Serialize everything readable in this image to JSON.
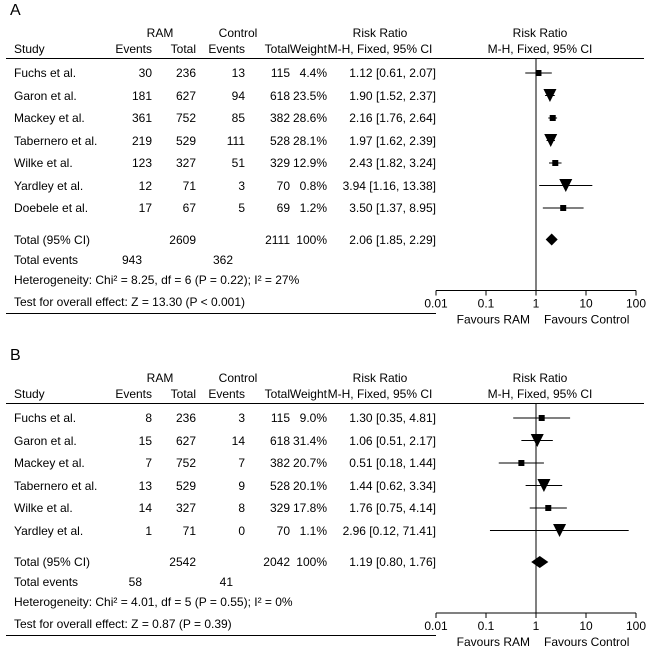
{
  "panels": [
    {
      "letter": "A",
      "headers": {
        "group1": "RAM",
        "group2": "Control",
        "study": "Study",
        "events1": "Events",
        "total1": "Total",
        "events2": "Events",
        "total2": "Total",
        "weight": "Weight",
        "rr_title": "Risk Ratio",
        "rr_method": "M-H, Fixed, 95% CI",
        "plot_title": "Risk Ratio",
        "plot_method": "M-H, Fixed, 95% CI"
      },
      "studies": [
        {
          "study": "Fuchs et al.",
          "e1": "30",
          "t1": "236",
          "e2": "13",
          "t2": "115",
          "weight": "4.4%",
          "ci": "1.12 [0.61, 2.07]"
        },
        {
          "study": "Garon et al.",
          "e1": "181",
          "t1": "627",
          "e2": "94",
          "t2": "618",
          "weight": "23.5%",
          "ci": "1.90 [1.52, 2.37]"
        },
        {
          "study": "Mackey et al.",
          "e1": "361",
          "t1": "752",
          "e2": "85",
          "t2": "382",
          "weight": "28.6%",
          "ci": "2.16 [1.76, 2.64]"
        },
        {
          "study": "Tabernero et al.",
          "e1": "219",
          "t1": "529",
          "e2": "111",
          "t2": "528",
          "weight": "28.1%",
          "ci": "1.97 [1.62, 2.39]"
        },
        {
          "study": "Wilke et al.",
          "e1": "123",
          "t1": "327",
          "e2": "51",
          "t2": "329",
          "weight": "12.9%",
          "ci": "2.43 [1.82, 3.24]"
        },
        {
          "study": "Yardley et al.",
          "e1": "12",
          "t1": "71",
          "e2": "3",
          "t2": "70",
          "weight": "0.8%",
          "ci": "3.94 [1.16, 13.38]"
        },
        {
          "study": "Doebele et al.",
          "e1": "17",
          "t1": "67",
          "e2": "5",
          "t2": "69",
          "weight": "1.2%",
          "ci": "3.50 [1.37, 8.95]"
        }
      ],
      "total": {
        "label": "Total (95% CI)",
        "t1": "2609",
        "t2": "2111",
        "weight": "100%",
        "ci": "2.06 [1.85, 2.29]"
      },
      "total_events": {
        "label": "Total events",
        "e1": "943",
        "e2": "362"
      },
      "heterogeneity": "Heterogeneity: Chi² = 8.25, df = 6 (P = 0.22); I² = 27%",
      "overall": "Test for overall effect: Z = 13.30 (P < 0.001)",
      "favours_left": "Favours RAM",
      "favours_right": "Favours Control"
    },
    {
      "letter": "B",
      "headers": {
        "group1": "RAM",
        "group2": "Control",
        "study": "Study",
        "events1": "Events",
        "total1": "Total",
        "events2": "Events",
        "total2": "Total",
        "weight": "Weight",
        "rr_title": "Risk Ratio",
        "rr_method": "M-H, Fixed, 95% CI",
        "plot_title": "Risk Ratio",
        "plot_method": "M-H, Fixed, 95% CI"
      },
      "studies": [
        {
          "study": "Fuchs et al.",
          "e1": "8",
          "t1": "236",
          "e2": "3",
          "t2": "115",
          "weight": "9.0%",
          "ci": "1.30 [0.35, 4.81]"
        },
        {
          "study": "Garon et al.",
          "e1": "15",
          "t1": "627",
          "e2": "14",
          "t2": "618",
          "weight": "31.4%",
          "ci": "1.06 [0.51, 2.17]"
        },
        {
          "study": "Mackey et al.",
          "e1": "7",
          "t1": "752",
          "e2": "7",
          "t2": "382",
          "weight": "20.7%",
          "ci": "0.51 [0.18, 1.44]"
        },
        {
          "study": "Tabernero et al.",
          "e1": "13",
          "t1": "529",
          "e2": "9",
          "t2": "528",
          "weight": "20.1%",
          "ci": "1.44 [0.62, 3.34]"
        },
        {
          "study": "Wilke et al.",
          "e1": "14",
          "t1": "327",
          "e2": "8",
          "t2": "329",
          "weight": "17.8%",
          "ci": "1.76 [0.75, 4.14]"
        },
        {
          "study": "Yardley et al.",
          "e1": "1",
          "t1": "71",
          "e2": "0",
          "t2": "70",
          "weight": "1.1%",
          "ci": "2.96 [0.12, 71.41]"
        }
      ],
      "total": {
        "label": "Total (95% CI)",
        "t1": "2542",
        "t2": "2042",
        "weight": "100%",
        "ci": "1.19 [0.80, 1.76]"
      },
      "total_events": {
        "label": "Total events",
        "e1": "58",
        "e2": "41"
      },
      "heterogeneity": "Heterogeneity: Chi² = 4.01, df = 5 (P = 0.55); I² = 0%",
      "overall": "Test for overall effect: Z = 0.87 (P = 0.39)",
      "favours_left": "Favours RAM",
      "favours_right": "Favours Control"
    }
  ],
  "chart_data": [
    {
      "type": "forest",
      "title": "A",
      "scale": "log",
      "xlim": [
        0.01,
        100
      ],
      "ticks": [
        0.01,
        0.1,
        1,
        10,
        100
      ],
      "tick_labels": [
        "0.01",
        "0.1",
        "1",
        "10",
        "100"
      ],
      "xlabel_left": "Favours RAM",
      "xlabel_right": "Favours Control",
      "studies": [
        "Fuchs et al.",
        "Garon et al.",
        "Mackey et al.",
        "Tabernero et al.",
        "Wilke et al.",
        "Yardley et al.",
        "Doebele et al."
      ],
      "rr": [
        1.12,
        1.9,
        2.16,
        1.97,
        2.43,
        3.94,
        3.5
      ],
      "lower": [
        0.61,
        1.52,
        1.76,
        1.62,
        1.82,
        1.16,
        1.37
      ],
      "upper": [
        2.07,
        2.37,
        2.64,
        2.39,
        3.24,
        13.38,
        8.95
      ],
      "marker": [
        "square",
        "triangle",
        "square",
        "triangle",
        "square",
        "triangle",
        "square"
      ],
      "weight": [
        4.4,
        23.5,
        28.6,
        28.1,
        12.9,
        0.8,
        1.2
      ],
      "pooled": {
        "rr": 2.06,
        "lower": 1.85,
        "upper": 2.29
      }
    },
    {
      "type": "forest",
      "title": "B",
      "scale": "log",
      "xlim": [
        0.01,
        100
      ],
      "ticks": [
        0.01,
        0.1,
        1,
        10,
        100
      ],
      "tick_labels": [
        "0.01",
        "0.1",
        "1",
        "10",
        "100"
      ],
      "xlabel_left": "Favours RAM",
      "xlabel_right": "Favours Control",
      "studies": [
        "Fuchs et al.",
        "Garon et al.",
        "Mackey et al.",
        "Tabernero et al.",
        "Wilke et al.",
        "Yardley et al."
      ],
      "rr": [
        1.3,
        1.06,
        0.51,
        1.44,
        1.76,
        2.96
      ],
      "lower": [
        0.35,
        0.51,
        0.18,
        0.62,
        0.75,
        0.12
      ],
      "upper": [
        4.81,
        2.17,
        1.44,
        3.34,
        4.14,
        71.41
      ],
      "marker": [
        "square",
        "triangle",
        "square",
        "triangle",
        "square",
        "triangle"
      ],
      "weight": [
        9.0,
        31.4,
        20.7,
        20.1,
        17.8,
        1.1
      ],
      "pooled": {
        "rr": 1.19,
        "lower": 0.8,
        "upper": 1.76
      }
    }
  ]
}
